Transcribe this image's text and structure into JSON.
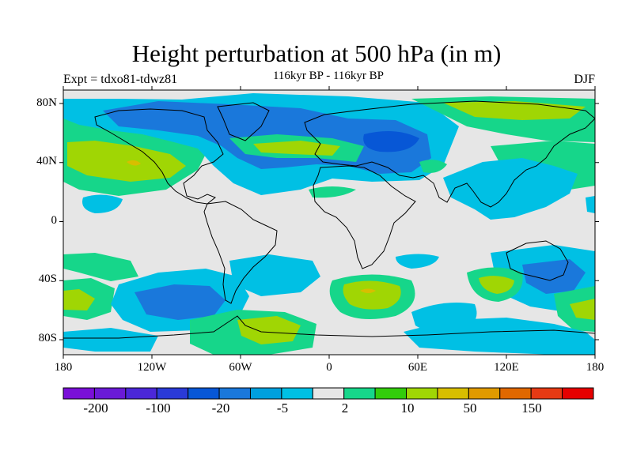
{
  "title": "Height perturbation at 500 hPa (in m)",
  "experiment_label": "Expt = tdxo81-tdwz81",
  "subtitle": "116kyr BP - 116kyr BP",
  "season": "DJF",
  "map": {
    "lat_ticks": [
      "80N",
      "40N",
      "0",
      "40S",
      "80S"
    ],
    "lon_ticks": [
      "180",
      "120W",
      "60W",
      "0",
      "60E",
      "120E",
      "180"
    ],
    "lon_range": [
      -180,
      180
    ],
    "lat_range": [
      -90,
      90
    ],
    "background_color": "#e6e6e6"
  },
  "colorbar": {
    "colors": [
      "#7a0fd8",
      "#6a1ad6",
      "#4b27d8",
      "#2a3ad8",
      "#0757d6",
      "#1a78db",
      "#00a0de",
      "#00c0e4",
      "#e6e6e6",
      "#16d68a",
      "#33cc0b",
      "#a0d604",
      "#d8be00",
      "#e09a00",
      "#e06800",
      "#e63a14",
      "#e60000"
    ],
    "labels": [
      "-200",
      "-100",
      "-20",
      "-5",
      "2",
      "10",
      "50",
      "150"
    ]
  }
}
